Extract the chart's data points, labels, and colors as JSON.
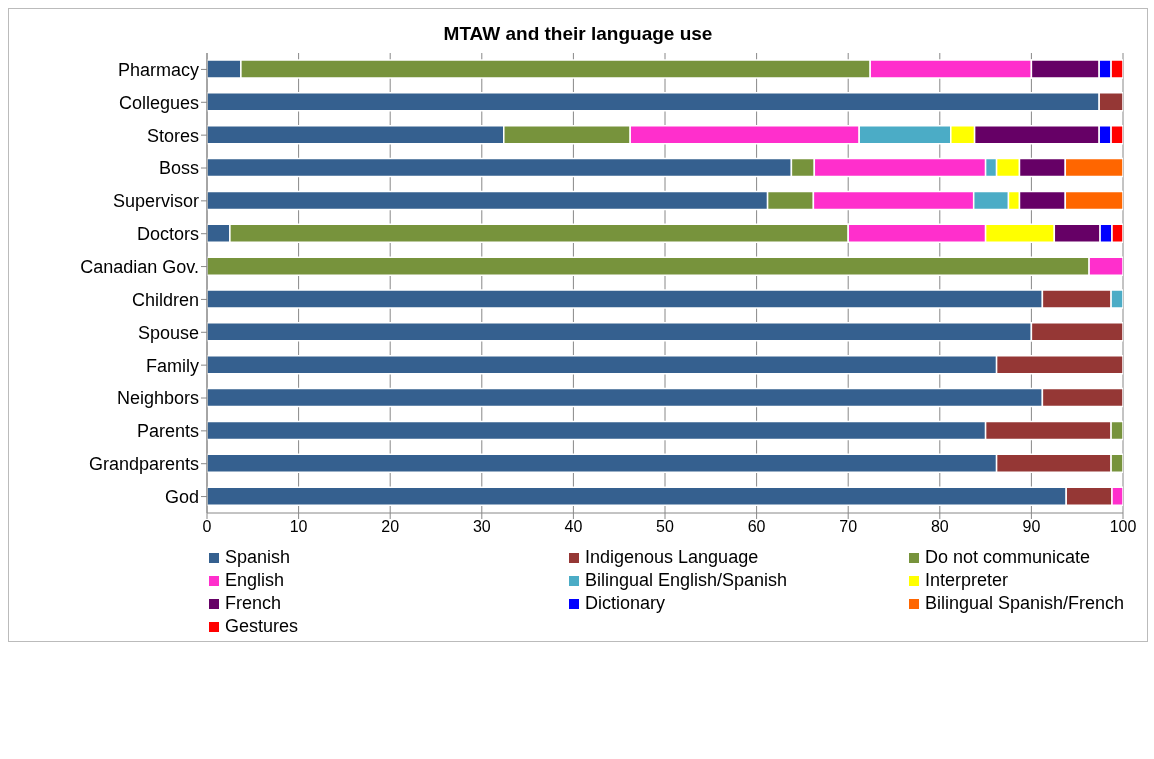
{
  "chart_data": {
    "type": "bar",
    "orientation": "horizontal",
    "stacked": true,
    "title": "MTAW and their language use",
    "categories": [
      "Pharmacy",
      "Collegues",
      "Stores",
      "Boss",
      "Supervisor",
      "Doctors",
      "Canadian Gov.",
      "Children",
      "Spouse",
      "Family",
      "Neighbors",
      "Parents",
      "Grandparents",
      "God"
    ],
    "series": [
      {
        "name": "Spanish",
        "color": "#35608f",
        "values": [
          3.7,
          97.4,
          32.4,
          63.8,
          61.2,
          2.5,
          null,
          91.2,
          90,
          86.2,
          91.2,
          85,
          86.2,
          93.8
        ]
      },
      {
        "name": "Indigenous Language",
        "color": "#953735",
        "values": [
          null,
          2.6,
          null,
          null,
          null,
          null,
          null,
          7.5,
          10,
          13.8,
          8.8,
          13.7,
          12.5,
          5
        ]
      },
      {
        "name": "Do not communicate",
        "color": "#77933c",
        "values": [
          68.7,
          null,
          13.8,
          2.5,
          5,
          67.5,
          96.3,
          null,
          null,
          null,
          null,
          1.3,
          1.3,
          null
        ]
      },
      {
        "name": "English",
        "color": "#ff2fcc",
        "values": [
          17.6,
          null,
          25,
          18.7,
          17.5,
          15,
          3.7,
          null,
          null,
          null,
          null,
          null,
          null,
          1.2
        ]
      },
      {
        "name": "Bilingual English/Spanish",
        "color": "#4bacc6",
        "values": [
          null,
          null,
          10,
          1.2,
          3.8,
          null,
          null,
          1.3,
          null,
          null,
          null,
          null,
          null,
          null
        ]
      },
      {
        "name": "Interpreter",
        "color": "#ffff00",
        "values": [
          null,
          null,
          2.6,
          2.5,
          1.2,
          7.5,
          null,
          null,
          null,
          null,
          null,
          null,
          null,
          null
        ]
      },
      {
        "name": "French",
        "color": "#660066",
        "values": [
          7.4,
          null,
          13.6,
          5,
          5,
          5,
          null,
          null,
          null,
          null,
          null,
          null,
          null,
          null
        ]
      },
      {
        "name": "Dictionary",
        "color": "#0000ff",
        "values": [
          1.3,
          null,
          1.3,
          null,
          null,
          1.3,
          null,
          null,
          null,
          null,
          null,
          null,
          null,
          null
        ]
      },
      {
        "name": "Bilingual Spanish/French",
        "color": "#ff6600",
        "values": [
          null,
          null,
          null,
          6.3,
          6.3,
          null,
          null,
          null,
          null,
          null,
          null,
          null,
          null,
          null
        ]
      },
      {
        "name": "Gestures",
        "color": "#ff0000",
        "values": [
          1.3,
          null,
          1.3,
          null,
          null,
          1.2,
          null,
          null,
          null,
          null,
          null,
          null,
          null,
          null
        ]
      }
    ],
    "xlim": [
      0,
      100
    ],
    "xticks": [
      0,
      10,
      20,
      30,
      40,
      50,
      60,
      70,
      80,
      90,
      100
    ],
    "grid": "x",
    "legend": "bottom"
  }
}
